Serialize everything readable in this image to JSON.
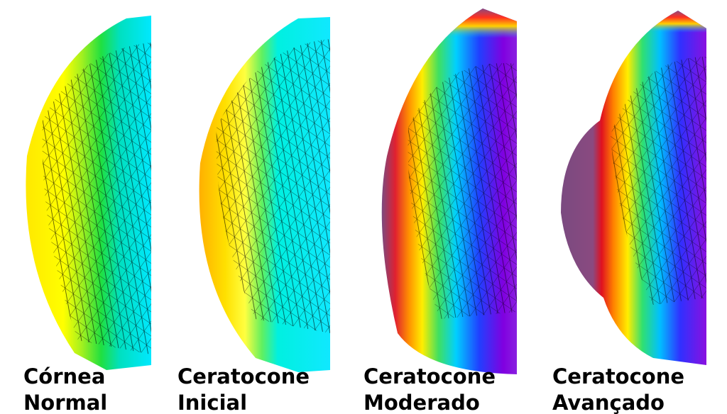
{
  "panels": [
    {
      "lines": [
        "Córnea",
        "Normal"
      ]
    },
    {
      "lines": [
        "Ceratocone",
        "Inicial"
      ]
    },
    {
      "lines": [
        "Ceratocone",
        "Moderado"
      ]
    },
    {
      "lines": [
        "Ceratocone",
        "Avançado"
      ]
    }
  ]
}
